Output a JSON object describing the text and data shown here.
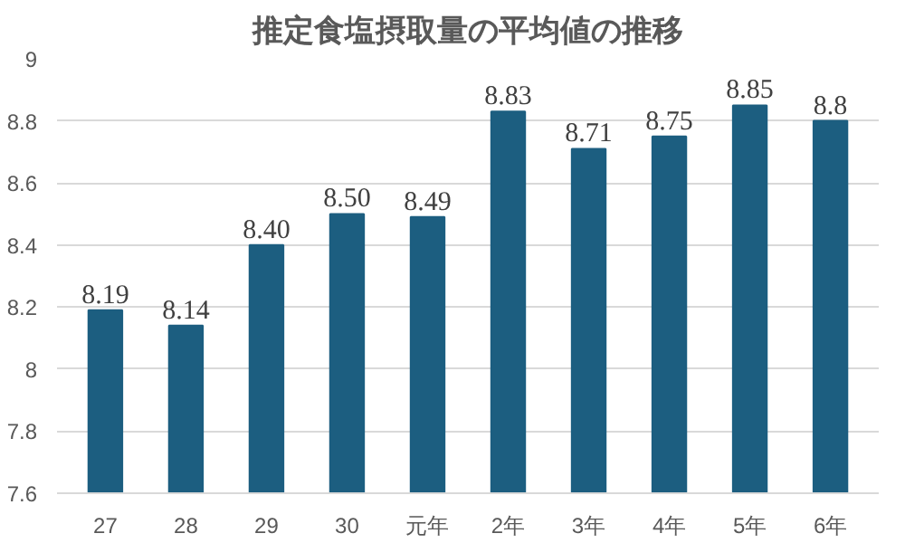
{
  "chart_data": {
    "type": "bar",
    "title": "推定食塩摂取量の平均値の推移",
    "categories": [
      "27",
      "28",
      "29",
      "30",
      "元年",
      "2年",
      "3年",
      "4年",
      "5年",
      "6年"
    ],
    "values": [
      8.19,
      8.14,
      8.4,
      8.5,
      8.49,
      8.83,
      8.71,
      8.75,
      8.85,
      8.8
    ],
    "value_labels": [
      "8.19",
      "8.14",
      "8.40",
      "8.50",
      "8.49",
      "8.83",
      "8.71",
      "8.75",
      "8.85",
      "8.8"
    ],
    "color": "#1c5e80",
    "ylim": [
      7.6,
      9
    ],
    "yticks": [
      {
        "value": 7.6,
        "label": "7.6"
      },
      {
        "value": 7.8,
        "label": "7.8"
      },
      {
        "value": 8,
        "label": "8"
      },
      {
        "value": 8.2,
        "label": "8.2"
      },
      {
        "value": 8.4,
        "label": "8.4"
      },
      {
        "value": 8.6,
        "label": "8.6"
      },
      {
        "value": 8.8,
        "label": "8.8"
      },
      {
        "value": 9,
        "label": "9"
      }
    ],
    "grid": "y"
  }
}
